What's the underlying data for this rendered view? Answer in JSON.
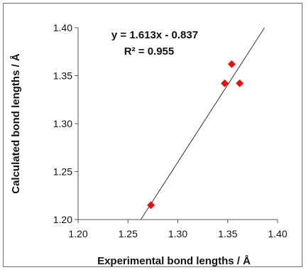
{
  "chart_data": {
    "type": "scatter",
    "xlabel": "Experimental bond lengths / Å",
    "ylabel": "Calculated bond lengths / Å",
    "xlim": [
      1.2,
      1.4
    ],
    "ylim": [
      1.2,
      1.4
    ],
    "x_ticks": [
      "1.20",
      "1.25",
      "1.30",
      "1.35",
      "1.40"
    ],
    "y_ticks": [
      "1.20",
      "1.25",
      "1.30",
      "1.35",
      "1.40"
    ],
    "points": [
      {
        "x": 1.273,
        "y": 1.215
      },
      {
        "x": 1.347,
        "y": 1.342
      },
      {
        "x": 1.354,
        "y": 1.362
      },
      {
        "x": 1.362,
        "y": 1.342
      }
    ],
    "trendline": {
      "slope": 1.613,
      "intercept": -0.837,
      "equation": "y = 1.613x - 0.837",
      "r_squared": "R² = 0.955"
    },
    "grid": false,
    "legend": "none",
    "marker_color": "#e81010",
    "line_color": "#333333"
  }
}
